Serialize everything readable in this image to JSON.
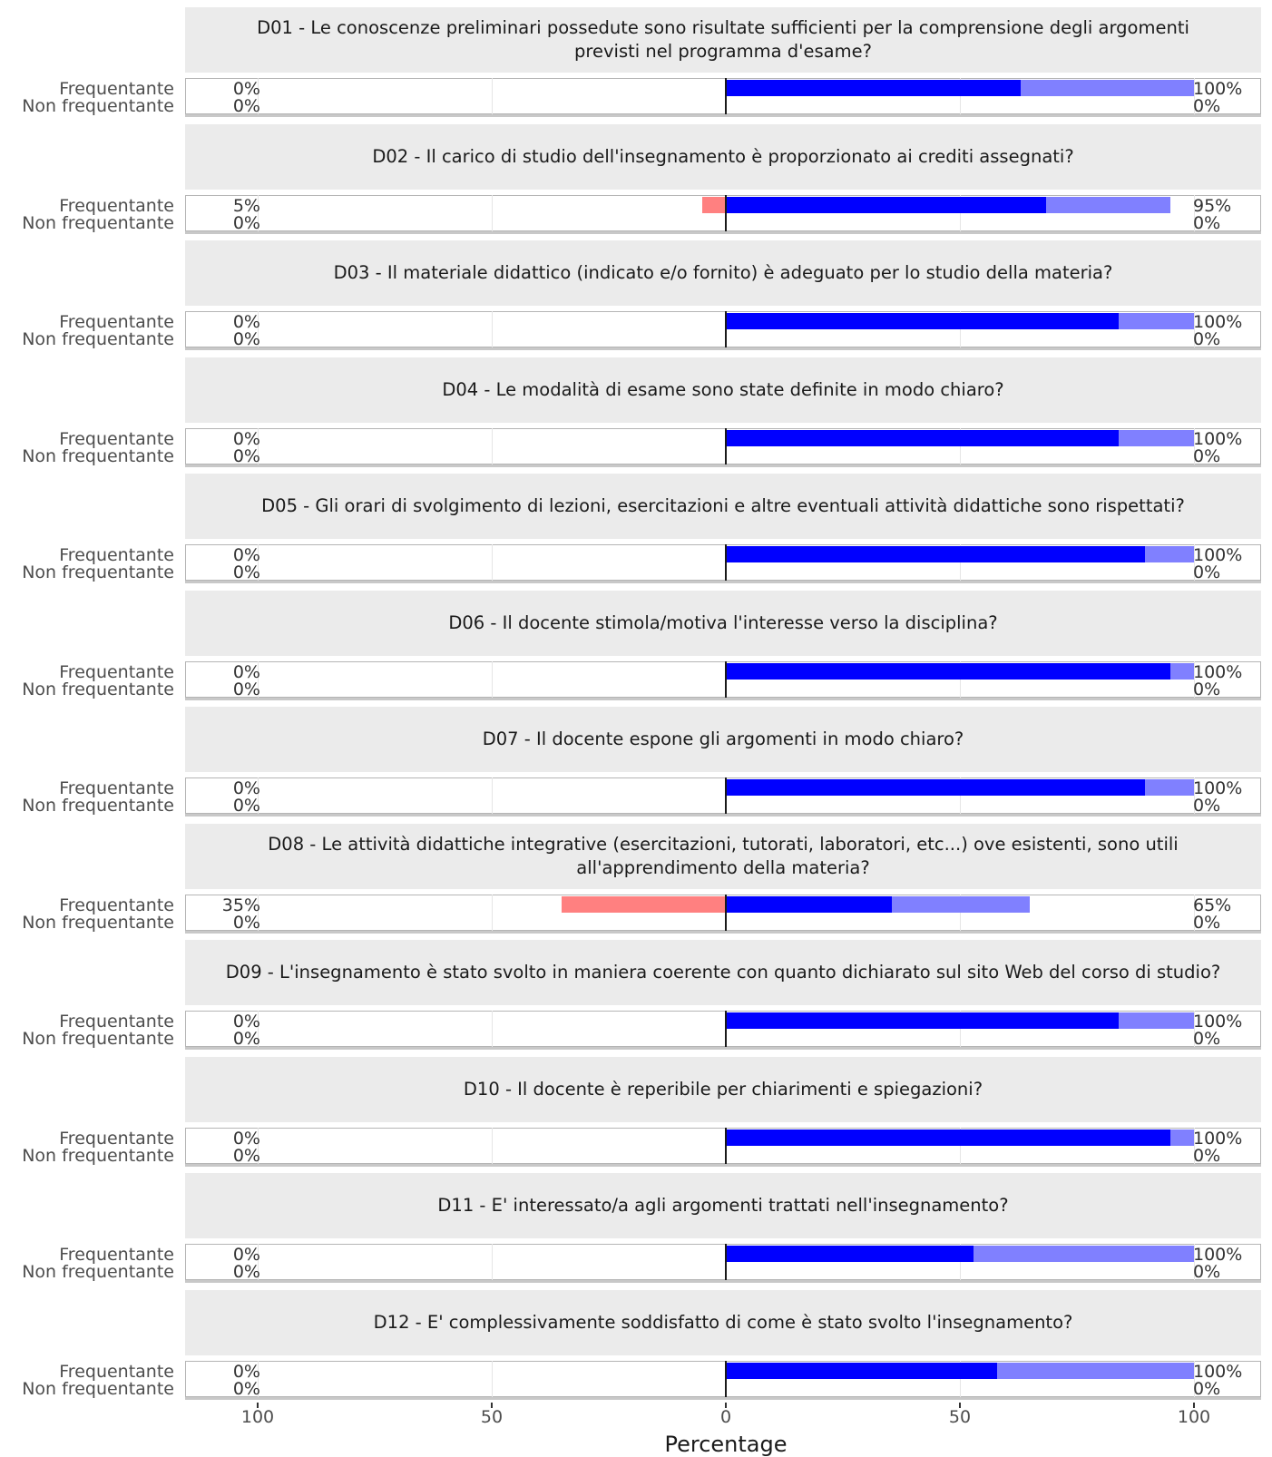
{
  "chart_data": {
    "type": "bar",
    "orientation": "horizontal-diverging",
    "xlabel": "Percentage",
    "xlim": [
      -100,
      100
    ],
    "xticks": [
      {
        "value": -100,
        "label": "100"
      },
      {
        "value": -50,
        "label": "50"
      },
      {
        "value": 0,
        "label": "0"
      },
      {
        "value": 50,
        "label": "50"
      },
      {
        "value": 100,
        "label": "100"
      }
    ],
    "row_labels": [
      "Frequentante",
      "Non frequentante"
    ],
    "colors": {
      "decisamente_si": "#0000ff",
      "piu_si_che_no": "#8080ff",
      "piu_no_che_si": "#ff8080",
      "decisamente_no": "#ff0000"
    },
    "questions": [
      {
        "title": "D01 - Le conoscenze preliminari possedute sono risultate sufficienti per la comprensione degli argomenti previsti nel programma d'esame?",
        "frequentante": {
          "neg_label": "0%",
          "pos_label": "100%",
          "decisamente_si": 63,
          "piu_si_che_no": 37,
          "piu_no_che_si": 0,
          "decisamente_no": 0
        },
        "non_frequentante": {
          "neg_label": "0%",
          "pos_label": "0%"
        }
      },
      {
        "title": "D02 - Il carico di studio dell'insegnamento è proporzionato ai crediti assegnati?",
        "frequentante": {
          "neg_label": "5%",
          "pos_label": "95%",
          "decisamente_si": 68.5,
          "piu_si_che_no": 26.5,
          "piu_no_che_si": 5,
          "decisamente_no": 0
        },
        "non_frequentante": {
          "neg_label": "0%",
          "pos_label": "0%"
        }
      },
      {
        "title": "D03 - Il materiale didattico (indicato e/o fornito) è adeguato per lo studio della materia?",
        "frequentante": {
          "neg_label": "0%",
          "pos_label": "100%",
          "decisamente_si": 84,
          "piu_si_che_no": 16,
          "piu_no_che_si": 0,
          "decisamente_no": 0
        },
        "non_frequentante": {
          "neg_label": "0%",
          "pos_label": "0%"
        }
      },
      {
        "title": "D04 - Le modalità di esame sono state definite in modo chiaro?",
        "frequentante": {
          "neg_label": "0%",
          "pos_label": "100%",
          "decisamente_si": 84,
          "piu_si_che_no": 16,
          "piu_no_che_si": 0,
          "decisamente_no": 0
        },
        "non_frequentante": {
          "neg_label": "0%",
          "pos_label": "0%"
        }
      },
      {
        "title": "D05 - Gli orari di svolgimento di lezioni, esercitazioni e altre eventuali attività didattiche sono rispettati?",
        "frequentante": {
          "neg_label": "0%",
          "pos_label": "100%",
          "decisamente_si": 89.5,
          "piu_si_che_no": 10.5,
          "piu_no_che_si": 0,
          "decisamente_no": 0
        },
        "non_frequentante": {
          "neg_label": "0%",
          "pos_label": "0%"
        }
      },
      {
        "title": "D06 - Il docente stimola/motiva l'interesse verso la disciplina?",
        "frequentante": {
          "neg_label": "0%",
          "pos_label": "100%",
          "decisamente_si": 95,
          "piu_si_che_no": 5,
          "piu_no_che_si": 0,
          "decisamente_no": 0
        },
        "non_frequentante": {
          "neg_label": "0%",
          "pos_label": "0%"
        }
      },
      {
        "title": "D07 - Il docente espone gli argomenti in modo chiaro?",
        "frequentante": {
          "neg_label": "0%",
          "pos_label": "100%",
          "decisamente_si": 89.5,
          "piu_si_che_no": 10.5,
          "piu_no_che_si": 0,
          "decisamente_no": 0
        },
        "non_frequentante": {
          "neg_label": "0%",
          "pos_label": "0%"
        }
      },
      {
        "title": "D08 - Le attività didattiche integrative (esercitazioni, tutorati, laboratori, etc...) ove esistenti, sono utili all'apprendimento della materia?",
        "frequentante": {
          "neg_label": "35%",
          "pos_label": "65%",
          "decisamente_si": 35.5,
          "piu_si_che_no": 29.5,
          "piu_no_che_si": 35,
          "decisamente_no": 0
        },
        "non_frequentante": {
          "neg_label": "0%",
          "pos_label": "0%"
        }
      },
      {
        "title": "D09 - L'insegnamento è stato svolto in maniera coerente con quanto dichiarato sul sito Web del corso di studio?",
        "frequentante": {
          "neg_label": "0%",
          "pos_label": "100%",
          "decisamente_si": 84,
          "piu_si_che_no": 16,
          "piu_no_che_si": 0,
          "decisamente_no": 0
        },
        "non_frequentante": {
          "neg_label": "0%",
          "pos_label": "0%"
        }
      },
      {
        "title": "D10 - Il docente è reperibile per chiarimenti e spiegazioni?",
        "frequentante": {
          "neg_label": "0%",
          "pos_label": "100%",
          "decisamente_si": 95,
          "piu_si_che_no": 5,
          "piu_no_che_si": 0,
          "decisamente_no": 0
        },
        "non_frequentante": {
          "neg_label": "0%",
          "pos_label": "0%"
        }
      },
      {
        "title": "D11 - E' interessato/a agli argomenti trattati nell'insegnamento?",
        "frequentante": {
          "neg_label": "0%",
          "pos_label": "100%",
          "decisamente_si": 53,
          "piu_si_che_no": 47,
          "piu_no_che_si": 0,
          "decisamente_no": 0
        },
        "non_frequentante": {
          "neg_label": "0%",
          "pos_label": "0%"
        }
      },
      {
        "title": "D12 - E' complessivamente soddisfatto di come è stato svolto l'insegnamento?",
        "frequentante": {
          "neg_label": "0%",
          "pos_label": "100%",
          "decisamente_si": 58,
          "piu_si_che_no": 42,
          "piu_no_che_si": 0,
          "decisamente_no": 0
        },
        "non_frequentante": {
          "neg_label": "0%",
          "pos_label": "0%"
        }
      }
    ]
  }
}
